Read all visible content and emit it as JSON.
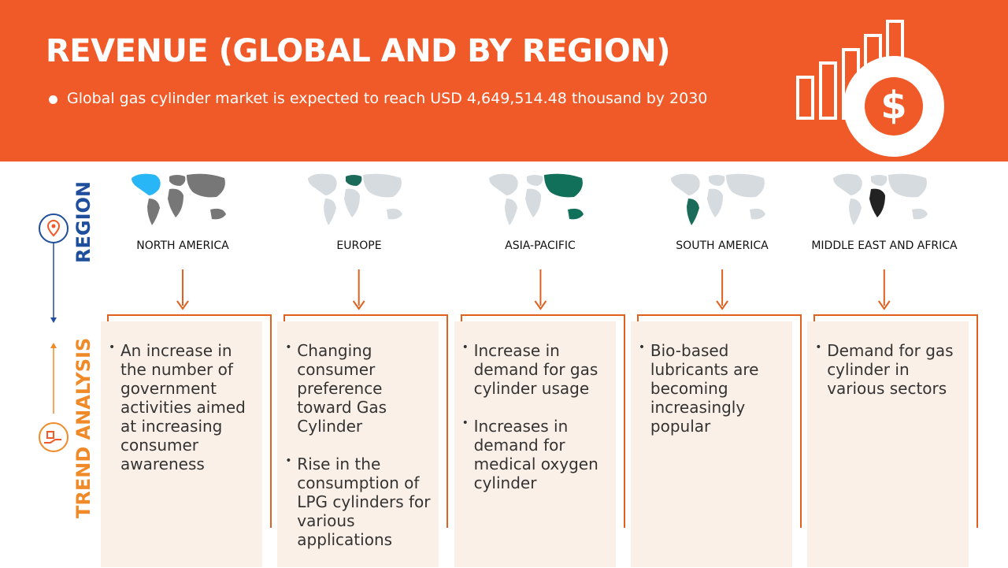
{
  "header": {
    "title": "REVENUE (GLOBAL AND BY REGION)",
    "bullet": "Global gas cylinder market is expected to reach USD 4,649,514.48 thousand by 2030"
  },
  "sidebar": {
    "region_label": "REGION",
    "trend_label": "TREND ANALYSIS"
  },
  "regions": [
    {
      "name": "NORTH AMERICA",
      "bullets": [
        "An increase in the number of government activities aimed at increasing consumer awareness"
      ]
    },
    {
      "name": "EUROPE",
      "bullets": [
        "Changing consumer preference toward Gas Cylinder",
        "Rise in the consumption of LPG cylinders for various applications"
      ]
    },
    {
      "name": "ASIA-PACIFIC",
      "bullets": [
        "Increase in demand for gas cylinder usage",
        "Increases in demand for medical oxygen cylinder"
      ]
    },
    {
      "name": "SOUTH AMERICA",
      "bullets": [
        "Bio-based lubricants are becoming increasingly popular"
      ]
    },
    {
      "name": "MIDDLE EAST AND AFRICA",
      "bullets": [
        "Demand for gas cylinder in various sectors"
      ]
    }
  ]
}
